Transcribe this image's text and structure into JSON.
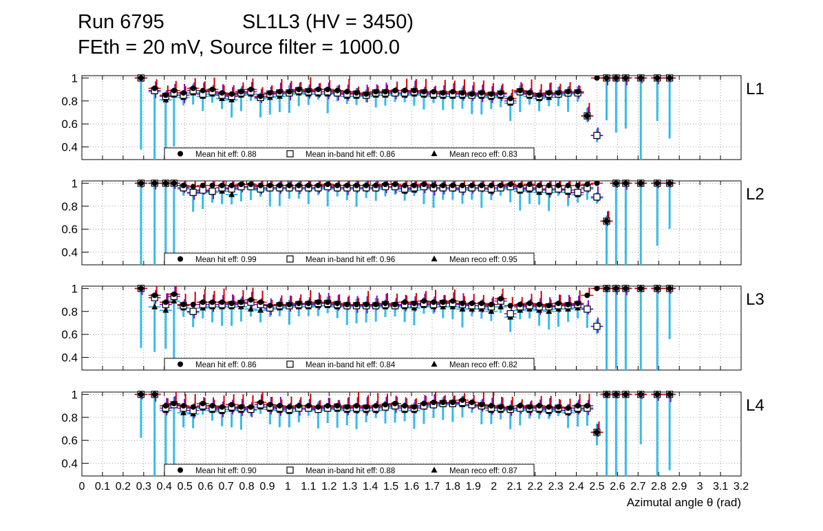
{
  "header": {
    "run": "Run 6795",
    "chamber": "SL1L3 (HV = 3450)",
    "conditions": "FEth = 20 mV, Source filter = 1000.0"
  },
  "colors": {
    "background": "#ffffff",
    "hit_error": "#cc0000",
    "inband_error": "#8800cc",
    "reco_error": "#33bbee",
    "grid": "#888888",
    "marker": "#000000"
  },
  "legend_labels": {
    "hit": "Mean hit  eff: ",
    "inband": "Mean in-band hit eff: ",
    "reco": "Mean reco eff: "
  },
  "chart_data": {
    "type": "scatter",
    "xlabel": "Azimutal angle θ (rad)",
    "xlim": [
      0,
      3.2
    ],
    "xticks": [
      "0",
      "0.1",
      "0.2",
      "0.3",
      "0.4",
      "0.5",
      "0.6",
      "0.7",
      "0.8",
      "0.9",
      "1",
      "1.1",
      "1.2",
      "1.3",
      "1.4",
      "1.5",
      "1.6",
      "1.7",
      "1.8",
      "1.9",
      "2",
      "2.1",
      "2.2",
      "2.3",
      "2.4",
      "2.5",
      "2.6",
      "2.7",
      "2.8",
      "2.9",
      "3",
      "3.1",
      "3.2"
    ],
    "yticks": [
      "1",
      "0.8",
      "0.6",
      "0.4"
    ],
    "ylim": [
      0.29,
      1.02
    ],
    "series_names": [
      "Mean hit eff",
      "Mean in-band hit eff",
      "Mean reco eff"
    ],
    "x": [
      0.287,
      0.353,
      0.407,
      0.447,
      0.493,
      0.54,
      0.587,
      0.633,
      0.68,
      0.727,
      0.773,
      0.82,
      0.867,
      0.913,
      0.96,
      1.007,
      1.053,
      1.1,
      1.147,
      1.193,
      1.24,
      1.287,
      1.333,
      1.38,
      1.427,
      1.473,
      1.52,
      1.567,
      1.613,
      1.66,
      1.707,
      1.753,
      1.8,
      1.847,
      1.893,
      1.94,
      1.987,
      2.033,
      2.08,
      2.127,
      2.173,
      2.22,
      2.267,
      2.313,
      2.36,
      2.407,
      2.453,
      2.5,
      2.547,
      2.593,
      2.64,
      2.713,
      2.793,
      2.853
    ],
    "panels": [
      {
        "label": "L1",
        "mean_hit": "0.88",
        "mean_inband": "0.86",
        "mean_reco": "0.83",
        "hit": [
          1.0,
          0.91,
          0.85,
          0.89,
          0.87,
          0.91,
          0.89,
          0.9,
          0.87,
          0.86,
          0.88,
          0.9,
          0.84,
          0.87,
          0.88,
          0.88,
          0.9,
          0.89,
          0.9,
          0.9,
          0.89,
          0.88,
          0.87,
          0.86,
          0.88,
          0.88,
          0.89,
          0.89,
          0.89,
          0.88,
          0.88,
          0.87,
          0.88,
          0.87,
          0.86,
          0.87,
          0.86,
          0.87,
          0.82,
          0.89,
          0.87,
          0.85,
          0.87,
          0.87,
          0.88,
          0.88,
          0.67,
          1.0,
          1.0,
          1.0,
          1.0,
          1.0,
          1.0,
          1.0
        ],
        "inband": [
          1.0,
          0.89,
          0.84,
          0.87,
          0.85,
          0.89,
          0.86,
          0.88,
          0.85,
          0.84,
          0.87,
          0.88,
          0.83,
          0.86,
          0.87,
          0.87,
          0.89,
          0.88,
          0.88,
          0.88,
          0.87,
          0.86,
          0.86,
          0.85,
          0.87,
          0.87,
          0.87,
          0.87,
          0.88,
          0.87,
          0.86,
          0.86,
          0.86,
          0.86,
          0.85,
          0.86,
          0.85,
          0.86,
          0.8,
          0.88,
          0.86,
          0.84,
          0.86,
          0.86,
          0.87,
          0.87,
          0.67,
          0.5,
          1.0,
          1.0,
          1.0,
          1.0,
          1.0,
          1.0
        ],
        "reco": [
          1.0,
          0.88,
          0.81,
          0.85,
          0.83,
          0.87,
          0.84,
          0.86,
          0.82,
          0.81,
          0.85,
          0.86,
          0.82,
          0.83,
          0.84,
          0.86,
          0.87,
          0.86,
          0.86,
          0.86,
          0.86,
          0.84,
          0.84,
          0.84,
          0.85,
          0.85,
          0.86,
          0.85,
          0.86,
          0.85,
          0.84,
          0.84,
          0.84,
          0.84,
          0.84,
          0.84,
          0.83,
          0.84,
          0.78,
          0.87,
          0.84,
          0.82,
          0.83,
          0.85,
          0.86,
          0.87,
          0.67,
          0.5,
          1.0,
          1.0,
          1.0,
          1.0,
          1.0,
          1.0
        ]
      },
      {
        "label": "L2",
        "mean_hit": "0.99",
        "mean_inband": "0.96",
        "mean_reco": "0.95",
        "hit": [
          1.0,
          1.0,
          1.0,
          1.0,
          0.98,
          0.97,
          0.98,
          0.98,
          0.98,
          0.98,
          0.99,
          0.99,
          0.98,
          0.98,
          0.98,
          0.98,
          0.98,
          0.98,
          0.98,
          0.99,
          0.98,
          0.98,
          0.98,
          0.98,
          0.98,
          0.99,
          0.99,
          0.98,
          0.98,
          0.99,
          0.98,
          0.98,
          0.98,
          0.98,
          0.98,
          0.98,
          0.98,
          0.98,
          0.99,
          0.98,
          0.99,
          0.98,
          0.98,
          0.98,
          0.98,
          0.98,
          0.99,
          1.0,
          0.67,
          1.0,
          1.0,
          1.0,
          1.0,
          1.0
        ],
        "inband": [
          1.0,
          1.0,
          1.0,
          1.0,
          0.96,
          0.92,
          0.94,
          0.93,
          0.96,
          0.95,
          0.97,
          0.97,
          0.95,
          0.96,
          0.96,
          0.96,
          0.96,
          0.96,
          0.96,
          0.97,
          0.96,
          0.96,
          0.96,
          0.96,
          0.96,
          0.97,
          0.97,
          0.95,
          0.96,
          0.97,
          0.96,
          0.96,
          0.96,
          0.95,
          0.96,
          0.96,
          0.95,
          0.96,
          0.97,
          0.95,
          0.96,
          0.95,
          0.94,
          0.95,
          0.94,
          0.92,
          0.96,
          0.88,
          0.67,
          1.0,
          1.0,
          1.0,
          1.0,
          1.0
        ],
        "reco": [
          1.0,
          1.0,
          1.0,
          1.0,
          0.95,
          0.91,
          0.93,
          0.92,
          0.93,
          0.9,
          0.96,
          0.96,
          0.94,
          0.95,
          0.95,
          0.95,
          0.95,
          0.95,
          0.95,
          0.96,
          0.95,
          0.95,
          0.95,
          0.95,
          0.95,
          0.96,
          0.96,
          0.93,
          0.94,
          0.96,
          0.95,
          0.95,
          0.95,
          0.94,
          0.95,
          0.95,
          0.93,
          0.95,
          0.96,
          0.93,
          0.94,
          0.92,
          0.92,
          0.94,
          0.92,
          0.9,
          0.95,
          0.87,
          0.67,
          1.0,
          1.0,
          1.0,
          1.0,
          1.0
        ]
      },
      {
        "label": "L3",
        "mean_hit": "0.86",
        "mean_inband": "0.84",
        "mean_reco": "0.82",
        "hit": [
          1.0,
          0.94,
          0.88,
          0.95,
          0.86,
          0.86,
          0.88,
          0.88,
          0.88,
          0.87,
          0.88,
          0.9,
          0.88,
          0.85,
          0.86,
          0.86,
          0.87,
          0.87,
          0.88,
          0.88,
          0.87,
          0.86,
          0.86,
          0.86,
          0.86,
          0.87,
          0.86,
          0.88,
          0.87,
          0.89,
          0.88,
          0.88,
          0.89,
          0.87,
          0.87,
          0.87,
          0.86,
          0.91,
          0.85,
          0.86,
          0.87,
          0.86,
          0.85,
          0.87,
          0.86,
          0.87,
          0.94,
          1.0,
          1.0,
          1.0,
          1.0,
          1.0,
          1.0,
          1.0
        ],
        "inband": [
          1.0,
          0.92,
          0.86,
          0.93,
          0.85,
          0.8,
          0.86,
          0.86,
          0.86,
          0.86,
          0.87,
          0.88,
          0.86,
          0.83,
          0.85,
          0.85,
          0.86,
          0.86,
          0.87,
          0.87,
          0.86,
          0.85,
          0.85,
          0.85,
          0.85,
          0.86,
          0.85,
          0.86,
          0.86,
          0.87,
          0.86,
          0.87,
          0.87,
          0.86,
          0.85,
          0.85,
          0.84,
          0.89,
          0.78,
          0.84,
          0.85,
          0.84,
          0.84,
          0.85,
          0.85,
          0.86,
          0.82,
          0.67,
          1.0,
          1.0,
          1.0,
          1.0,
          1.0,
          1.0
        ],
        "reco": [
          1.0,
          0.84,
          0.81,
          0.89,
          0.83,
          0.79,
          0.83,
          0.84,
          0.84,
          0.84,
          0.84,
          0.82,
          0.81,
          0.82,
          0.83,
          0.84,
          0.84,
          0.84,
          0.85,
          0.85,
          0.84,
          0.84,
          0.84,
          0.84,
          0.84,
          0.84,
          0.84,
          0.84,
          0.83,
          0.85,
          0.84,
          0.84,
          0.84,
          0.82,
          0.82,
          0.82,
          0.8,
          0.84,
          0.75,
          0.81,
          0.82,
          0.81,
          0.8,
          0.82,
          0.82,
          0.83,
          0.82,
          0.67,
          1.0,
          1.0,
          1.0,
          1.0,
          1.0,
          1.0
        ]
      },
      {
        "label": "L4",
        "mean_hit": "0.90",
        "mean_inband": "0.88",
        "mean_reco": "0.87",
        "hit": [
          1.0,
          1.0,
          0.9,
          0.92,
          0.9,
          0.89,
          0.92,
          0.9,
          0.89,
          0.91,
          0.89,
          0.89,
          0.93,
          0.91,
          0.9,
          0.89,
          0.9,
          0.9,
          0.89,
          0.9,
          0.9,
          0.89,
          0.9,
          0.89,
          0.9,
          0.91,
          0.92,
          0.9,
          0.89,
          0.92,
          0.93,
          0.93,
          0.93,
          0.95,
          0.93,
          0.91,
          0.9,
          0.89,
          0.88,
          0.9,
          0.89,
          0.9,
          0.89,
          0.89,
          0.88,
          0.9,
          0.9,
          0.67,
          1.0,
          1.0,
          1.0,
          1.0,
          1.0,
          1.0
        ],
        "inband": [
          1.0,
          1.0,
          0.88,
          0.91,
          0.88,
          0.86,
          0.9,
          0.88,
          0.87,
          0.89,
          0.88,
          0.87,
          0.91,
          0.89,
          0.88,
          0.87,
          0.88,
          0.88,
          0.87,
          0.88,
          0.89,
          0.88,
          0.88,
          0.88,
          0.88,
          0.89,
          0.9,
          0.88,
          0.88,
          0.9,
          0.91,
          0.92,
          0.92,
          0.93,
          0.91,
          0.9,
          0.88,
          0.88,
          0.87,
          0.88,
          0.88,
          0.88,
          0.87,
          0.88,
          0.86,
          0.88,
          0.88,
          0.67,
          1.0,
          1.0,
          1.0,
          1.0,
          1.0,
          1.0
        ],
        "reco": [
          1.0,
          1.0,
          0.86,
          0.9,
          0.84,
          0.83,
          0.88,
          0.86,
          0.85,
          0.87,
          0.86,
          0.86,
          0.89,
          0.87,
          0.86,
          0.85,
          0.87,
          0.87,
          0.86,
          0.87,
          0.87,
          0.86,
          0.86,
          0.86,
          0.86,
          0.88,
          0.89,
          0.86,
          0.86,
          0.89,
          0.9,
          0.91,
          0.91,
          0.91,
          0.9,
          0.89,
          0.86,
          0.86,
          0.86,
          0.87,
          0.86,
          0.86,
          0.85,
          0.86,
          0.84,
          0.86,
          0.87,
          0.67,
          1.0,
          1.0,
          1.0,
          1.0,
          1.0,
          1.0
        ]
      }
    ]
  }
}
